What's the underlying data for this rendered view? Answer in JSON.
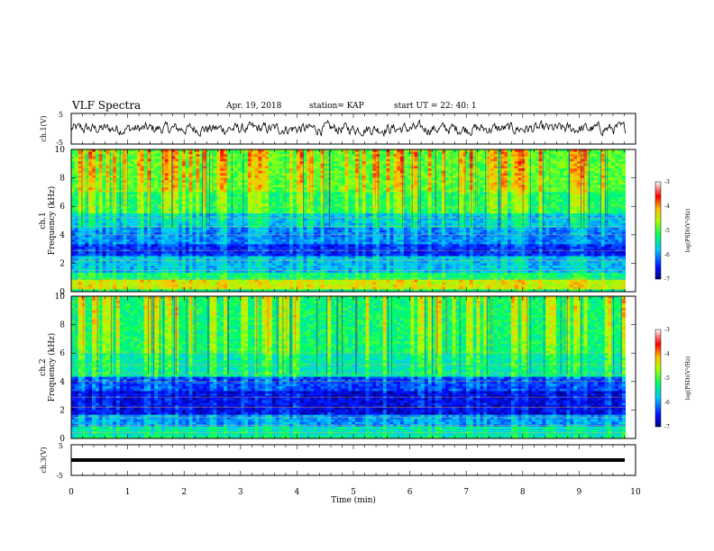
{
  "header": {
    "title": "VLF Spectra",
    "date": "Apr. 19, 2018",
    "station": "station= KAP",
    "start": "start  UT =   22: 40: 1"
  },
  "chart_data": [
    {
      "type": "line",
      "panel": "ch1",
      "ylabel": "ch.1(V)",
      "ylim": [
        -5,
        5
      ],
      "yticks": [
        "5",
        "-5"
      ],
      "series": [
        {
          "values_summary": "noisy signal around 0 V"
        }
      ]
    },
    {
      "type": "heatmap",
      "panel": "ch1-spectrogram",
      "ylabel": "ch.1 Frequency (kHz)",
      "ylim": [
        0,
        10
      ],
      "yticks": [
        "0",
        "2",
        "4",
        "6",
        "8",
        "10"
      ],
      "colorbar": {
        "label": "log(PSD)(V²/Hz)",
        "range": [
          -7,
          -3
        ],
        "ticks": [
          "-3",
          "-4",
          "-5",
          "-6",
          "-7"
        ]
      }
    },
    {
      "type": "heatmap",
      "panel": "ch2-spectrogram",
      "ylabel": "ch.2 Frequency (kHz)",
      "ylim": [
        0,
        10
      ],
      "yticks": [
        "0",
        "2",
        "4",
        "6",
        "8",
        "10"
      ],
      "colorbar": {
        "label": "log(PSD)(V²/Hz)",
        "range": [
          -7,
          -3
        ],
        "ticks": [
          "-3",
          "-4",
          "-5",
          "-6",
          "-7"
        ]
      }
    },
    {
      "type": "line",
      "panel": "ch3",
      "ylabel": "ch.3(V)",
      "ylim": [
        -5,
        5
      ],
      "yticks": [
        "5",
        "0",
        "-5"
      ],
      "series": [
        {
          "values_summary": "flat line at about -1 V"
        }
      ]
    }
  ],
  "xaxis": {
    "label": "Time  (min)",
    "ticks": [
      "0",
      "1",
      "2",
      "3",
      "4",
      "5",
      "6",
      "7",
      "8",
      "9",
      "10"
    ],
    "xlim": [
      0,
      10
    ]
  }
}
